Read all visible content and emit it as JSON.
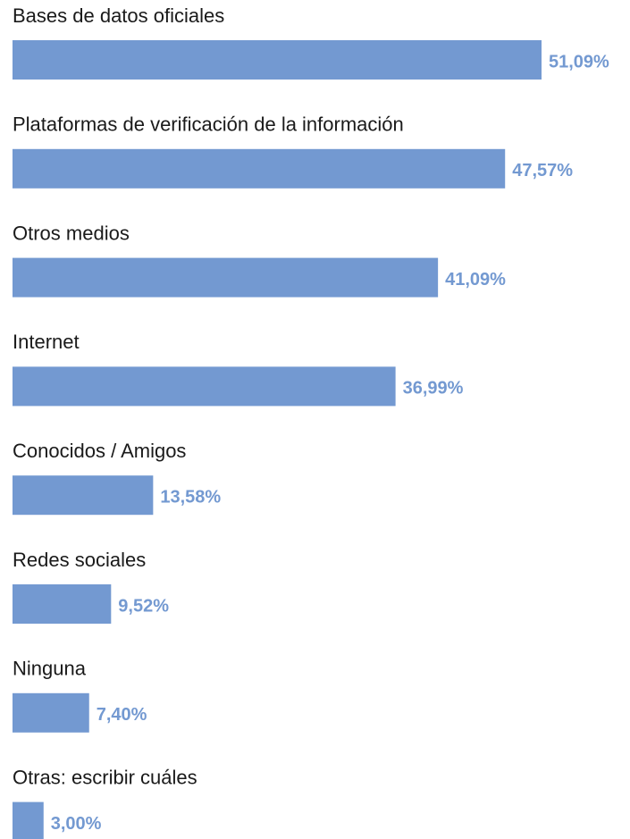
{
  "chart_data": {
    "type": "bar",
    "orientation": "horizontal",
    "categories": [
      "Bases de datos oficiales",
      "Plataformas de verificación de la información",
      "Otros medios",
      "Internet",
      "Conocidos / Amigos",
      "Redes sociales",
      "Ninguna",
      "Otras: escribir cuáles"
    ],
    "values": [
      51.09,
      47.57,
      41.09,
      36.99,
      13.58,
      9.52,
      7.4,
      3.0
    ],
    "value_labels": [
      "51,09%",
      "47,57%",
      "41,09%",
      "36,99%",
      "13,58%",
      "9,52%",
      "7,40%",
      "3,00%"
    ],
    "color": "#7399d1"
  }
}
